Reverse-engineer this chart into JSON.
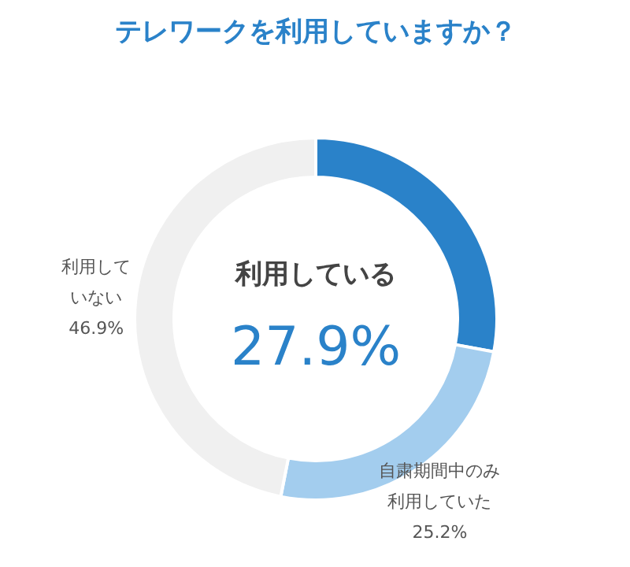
{
  "chart_data": {
    "type": "donut",
    "title": "テレワークを利用していますか？",
    "categories": [
      "利用している",
      "自粛期間中のみ利用していた",
      "利用していない"
    ],
    "values": [
      27.9,
      25.2,
      46.9
    ],
    "colors": [
      "#2a82c9",
      "#a3cdee",
      "#f0f0f0"
    ],
    "value_labels": [
      "27.9%",
      "25.2%",
      "46.9%"
    ]
  }
}
